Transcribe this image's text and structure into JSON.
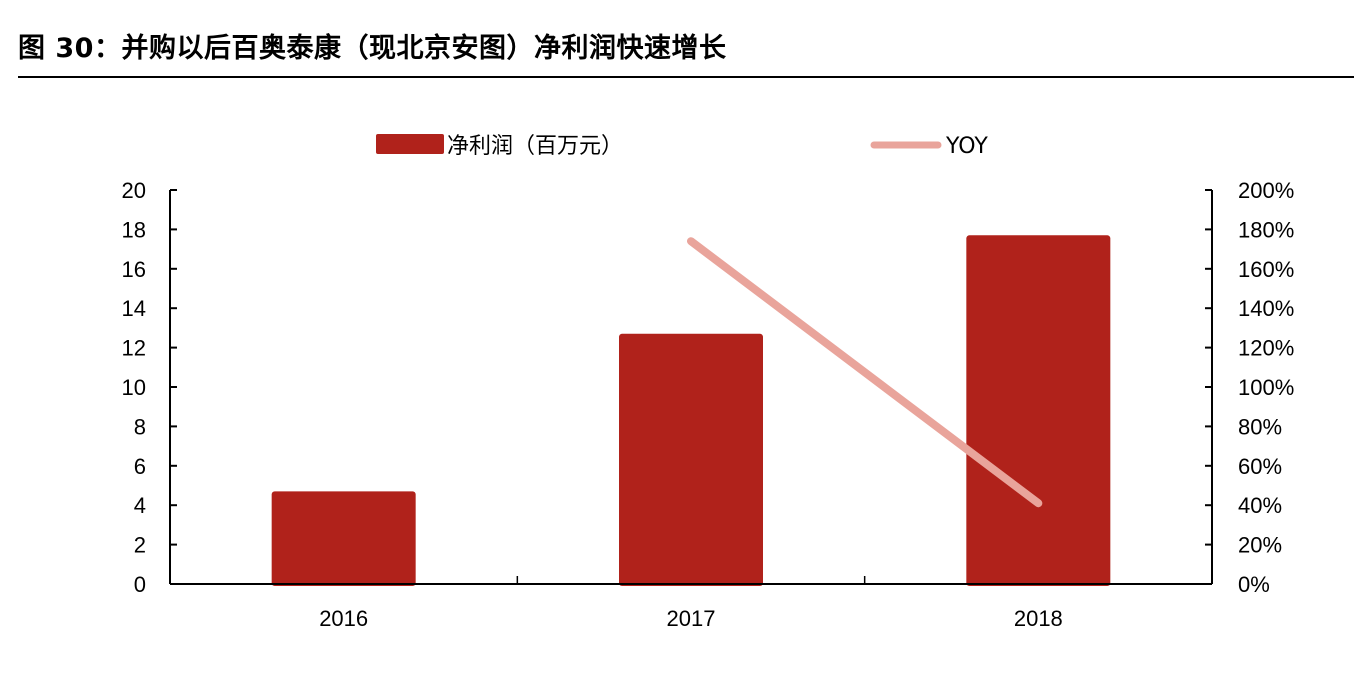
{
  "title": "图 30：并购以后百奥泰康（现北京安图）净利润快速增长",
  "legend": {
    "bar_label": "净利润（百万元）",
    "line_label": "YOY"
  },
  "colors": {
    "bar": "#b0221b",
    "line": "#e9a49b",
    "axis": "#000000"
  },
  "axes": {
    "left_ticks": [
      "0",
      "2",
      "4",
      "6",
      "8",
      "10",
      "12",
      "14",
      "16",
      "18",
      "20"
    ],
    "right_ticks": [
      "0%",
      "20%",
      "40%",
      "60%",
      "80%",
      "100%",
      "120%",
      "140%",
      "160%",
      "180%",
      "200%"
    ],
    "categories": [
      "2016",
      "2017",
      "2018"
    ]
  },
  "chart_data": {
    "type": "bar",
    "title": "图 30：并购以后百奥泰康（现北京安图）净利润快速增长",
    "categories": [
      "2016",
      "2017",
      "2018"
    ],
    "series": [
      {
        "name": "净利润（百万元）",
        "type": "bar",
        "axis": "left",
        "values": [
          4.7,
          12.7,
          17.7
        ]
      },
      {
        "name": "YOY",
        "type": "line",
        "axis": "right",
        "values": [
          null,
          1.74,
          0.41
        ]
      }
    ],
    "xlabel": "",
    "ylabel": "",
    "ylim": [
      0,
      20
    ],
    "y2lim": [
      0,
      2.0
    ],
    "y2_format": "percent",
    "grid": false,
    "legend_position": "top"
  }
}
